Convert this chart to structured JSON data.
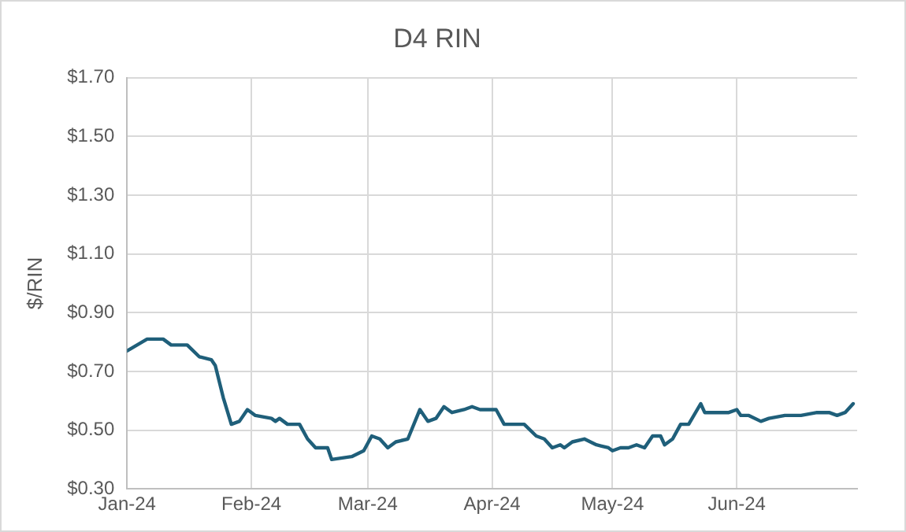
{
  "chart_data": {
    "type": "line",
    "title": "D4 RIN",
    "ylabel": "$/RIN",
    "x": [
      "2024-01-01",
      "2024-01-06",
      "2024-01-10",
      "2024-01-12",
      "2024-01-16",
      "2024-01-19",
      "2024-01-22",
      "2024-01-23",
      "2024-01-25",
      "2024-01-27",
      "2024-01-29",
      "2024-01-31",
      "2024-02-02",
      "2024-02-06",
      "2024-02-07",
      "2024-02-08",
      "2024-02-10",
      "2024-02-13",
      "2024-02-15",
      "2024-02-17",
      "2024-02-20",
      "2024-02-21",
      "2024-02-26",
      "2024-02-29",
      "2024-03-02",
      "2024-03-04",
      "2024-03-06",
      "2024-03-08",
      "2024-03-11",
      "2024-03-14",
      "2024-03-16",
      "2024-03-18",
      "2024-03-20",
      "2024-03-22",
      "2024-03-25",
      "2024-03-27",
      "2024-03-29",
      "2024-04-02",
      "2024-04-04",
      "2024-04-09",
      "2024-04-12",
      "2024-04-14",
      "2024-04-16",
      "2024-04-18",
      "2024-04-19",
      "2024-04-21",
      "2024-04-24",
      "2024-04-27",
      "2024-04-30",
      "2024-05-01",
      "2024-05-03",
      "2024-05-05",
      "2024-05-07",
      "2024-05-09",
      "2024-05-11",
      "2024-05-13",
      "2024-05-14",
      "2024-05-16",
      "2024-05-18",
      "2024-05-20",
      "2024-05-23",
      "2024-05-24",
      "2024-05-28",
      "2024-05-30",
      "2024-06-01",
      "2024-06-02",
      "2024-06-04",
      "2024-06-07",
      "2024-06-09",
      "2024-06-13",
      "2024-06-17",
      "2024-06-21",
      "2024-06-24",
      "2024-06-26",
      "2024-06-28",
      "2024-06-30"
    ],
    "series": [
      {
        "color": "#1f5f7a",
        "values": [
          0.77,
          0.81,
          0.81,
          0.79,
          0.79,
          0.75,
          0.74,
          0.72,
          0.61,
          0.52,
          0.53,
          0.57,
          0.55,
          0.54,
          0.53,
          0.54,
          0.52,
          0.52,
          0.47,
          0.44,
          0.44,
          0.4,
          0.41,
          0.43,
          0.48,
          0.47,
          0.44,
          0.46,
          0.47,
          0.57,
          0.53,
          0.54,
          0.58,
          0.56,
          0.57,
          0.58,
          0.57,
          0.57,
          0.52,
          0.52,
          0.48,
          0.47,
          0.44,
          0.45,
          0.44,
          0.46,
          0.47,
          0.45,
          0.44,
          0.43,
          0.44,
          0.44,
          0.45,
          0.44,
          0.48,
          0.48,
          0.45,
          0.47,
          0.52,
          0.52,
          0.59,
          0.56,
          0.56,
          0.56,
          0.57,
          0.55,
          0.55,
          0.53,
          0.54,
          0.55,
          0.55,
          0.56,
          0.56,
          0.55,
          0.56,
          0.59
        ]
      }
    ],
    "xlim": [
      "2024-01-01",
      "2024-07-01"
    ],
    "xticks": [
      {
        "value": "2024-01-01",
        "label": "Jan-24"
      },
      {
        "value": "2024-02-01",
        "label": "Feb-24"
      },
      {
        "value": "2024-03-01",
        "label": "Mar-24"
      },
      {
        "value": "2024-04-01",
        "label": "Apr-24"
      },
      {
        "value": "2024-05-01",
        "label": "May-24"
      },
      {
        "value": "2024-06-01",
        "label": "Jun-24"
      }
    ],
    "ylim": [
      0.3,
      1.7
    ],
    "yticks": [
      {
        "value": 0.3,
        "label": "$0.30"
      },
      {
        "value": 0.5,
        "label": "$0.50"
      },
      {
        "value": 0.7,
        "label": "$0.70"
      },
      {
        "value": 0.9,
        "label": "$0.90"
      },
      {
        "value": 1.1,
        "label": "$1.10"
      },
      {
        "value": 1.3,
        "label": "$1.30"
      },
      {
        "value": 1.5,
        "label": "$1.50"
      },
      {
        "value": 1.7,
        "label": "$1.70"
      }
    ],
    "grid": true,
    "legend": false,
    "marker": "none",
    "line_style": "solid"
  }
}
